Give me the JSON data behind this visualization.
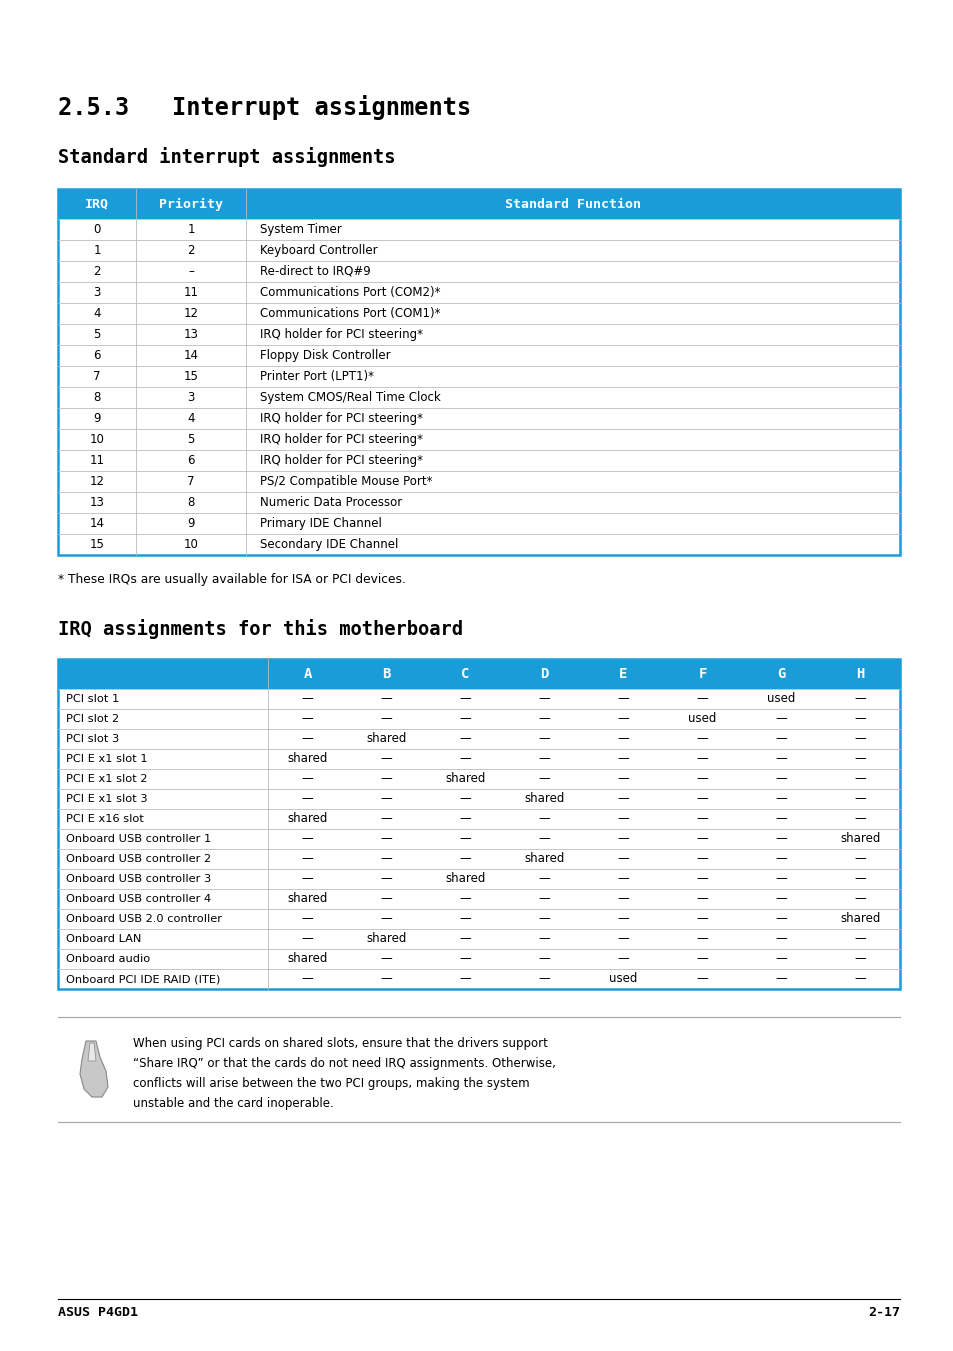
{
  "page_bg": "#ffffff",
  "header_bg": "#1a9cd8",
  "header_text_color": "#ffffff",
  "body_text_color": "#000000",
  "table_border_color": "#1a9cd8",
  "row_line_color": "#cccccc",
  "title1": "2.5.3   Interrupt assignments",
  "subtitle1": "Standard interrupt assignments",
  "subtitle2": "IRQ assignments for this motherboard",
  "irq_headers": [
    "IRQ",
    "Priority",
    "Standard Function"
  ],
  "irq_data": [
    [
      "0",
      "1",
      "System Timer"
    ],
    [
      "1",
      "2",
      "Keyboard Controller"
    ],
    [
      "2",
      "–",
      "Re-direct to IRQ#9"
    ],
    [
      "3",
      "11",
      "Communications Port (COM2)*"
    ],
    [
      "4",
      "12",
      "Communications Port (COM1)*"
    ],
    [
      "5",
      "13",
      "IRQ holder for PCI steering*"
    ],
    [
      "6",
      "14",
      "Floppy Disk Controller"
    ],
    [
      "7",
      "15",
      "Printer Port (LPT1)*"
    ],
    [
      "8",
      "3",
      "System CMOS/Real Time Clock"
    ],
    [
      "9",
      "4",
      "IRQ holder for PCI steering*"
    ],
    [
      "10",
      "5",
      "IRQ holder for PCI steering*"
    ],
    [
      "11",
      "6",
      "IRQ holder for PCI steering*"
    ],
    [
      "12",
      "7",
      "PS/2 Compatible Mouse Port*"
    ],
    [
      "13",
      "8",
      "Numeric Data Processor"
    ],
    [
      "14",
      "9",
      "Primary IDE Channel"
    ],
    [
      "15",
      "10",
      "Secondary IDE Channel"
    ]
  ],
  "footnote": "* These IRQs are usually available for ISA or PCI devices.",
  "irq2_headers": [
    "",
    "A",
    "B",
    "C",
    "D",
    "E",
    "F",
    "G",
    "H"
  ],
  "irq2_data": [
    [
      "PCI slot 1",
      "—",
      "—",
      "—",
      "—",
      "—",
      "—",
      "used",
      "—"
    ],
    [
      "PCI slot 2",
      "—",
      "—",
      "—",
      "—",
      "—",
      "used",
      "—",
      "—"
    ],
    [
      "PCI slot 3",
      "—",
      "shared",
      "—",
      "—",
      "—",
      "—",
      "—",
      "—"
    ],
    [
      "PCI E x1 slot 1",
      "shared",
      "—",
      "—",
      "—",
      "—",
      "—",
      "—",
      "—"
    ],
    [
      "PCI E x1 slot 2",
      "—",
      "—",
      "shared",
      "—",
      "—",
      "—",
      "—",
      "—"
    ],
    [
      "PCI E x1 slot 3",
      "—",
      "—",
      "—",
      "shared",
      "—",
      "—",
      "—",
      "—"
    ],
    [
      "PCI E x16 slot",
      "shared",
      "—",
      "—",
      "—",
      "—",
      "—",
      "—",
      "—"
    ],
    [
      "Onboard USB controller 1",
      "—",
      "—",
      "—",
      "—",
      "—",
      "—",
      "—",
      "shared"
    ],
    [
      "Onboard USB controller 2",
      "—",
      "—",
      "—",
      "shared",
      "—",
      "—",
      "—",
      "—"
    ],
    [
      "Onboard USB controller 3",
      "—",
      "—",
      "shared",
      "—",
      "—",
      "—",
      "—",
      "—"
    ],
    [
      "Onboard USB controller 4",
      "shared",
      "—",
      "—",
      "—",
      "—",
      "—",
      "—",
      "—"
    ],
    [
      "Onboard USB 2.0 controller",
      "—",
      "—",
      "—",
      "—",
      "—",
      "—",
      "—",
      "shared"
    ],
    [
      "Onboard LAN",
      "—",
      "shared",
      "—",
      "—",
      "—",
      "—",
      "—",
      "—"
    ],
    [
      "Onboard audio",
      "shared",
      "—",
      "—",
      "—",
      "—",
      "—",
      "—",
      "—"
    ],
    [
      "Onboard PCI IDE RAID (ITE)",
      "—",
      "—",
      "—",
      "—",
      "used",
      "—",
      "—",
      "—"
    ]
  ],
  "note_lines": [
    "When using PCI cards on shared slots, ensure that the drivers support",
    "“Share IRQ” or that the cards do not need IRQ assignments. Otherwise,",
    "conflicts will arise between the two PCI groups, making the system",
    "unstable and the card inoperable."
  ],
  "footer_left": "ASUS P4GD1",
  "footer_right": "2-17"
}
